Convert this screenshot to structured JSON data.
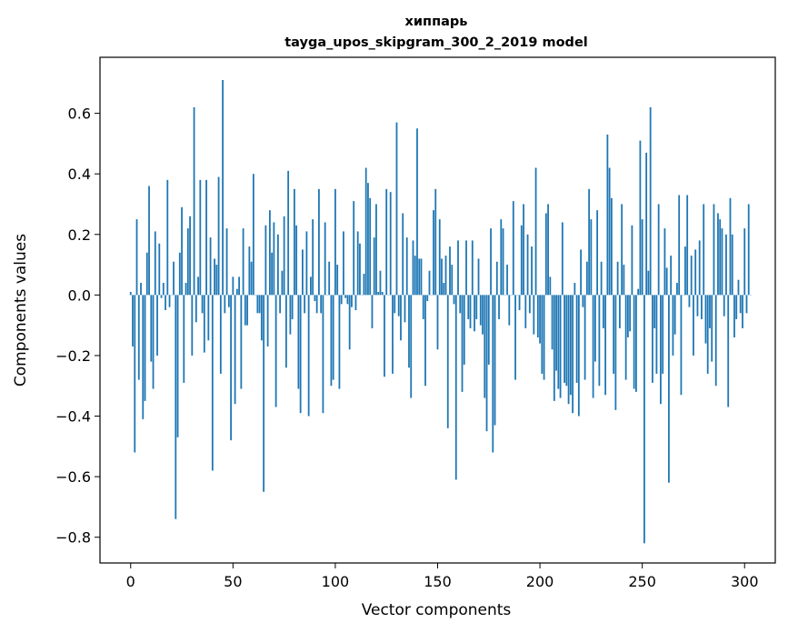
{
  "chart_data": {
    "type": "bar",
    "title": "хиппарь",
    "subtitle": "tayga_upos_skipgram_300_2_2019 model",
    "xlabel": "Vector components",
    "ylabel": "Components values",
    "xlim": [
      -15,
      315
    ],
    "ylim": [
      -0.885,
      0.785
    ],
    "grid": false,
    "bar_color": "#1f77b4",
    "xticks": [
      0,
      50,
      100,
      150,
      200,
      250,
      300
    ],
    "xtick_labels": [
      "0",
      "50",
      "100",
      "150",
      "200",
      "250",
      "300"
    ],
    "yticks": [
      -0.8,
      -0.6,
      -0.4,
      -0.2,
      0.0,
      0.2,
      0.4,
      0.6
    ],
    "ytick_labels": [
      "−0.8",
      "−0.6",
      "−0.4",
      "−0.2",
      "0.0",
      "0.2",
      "0.4",
      "0.6"
    ],
    "series": [
      {
        "values": [
          0.01,
          -0.17,
          -0.52,
          0.25,
          -0.28,
          0.04,
          -0.41,
          -0.35,
          0.14,
          0.36,
          -0.22,
          -0.31,
          0.21,
          -0.2,
          0.17,
          -0.01,
          0.04,
          -0.05,
          0.38,
          -0.04,
          0.0,
          0.11,
          -0.74,
          -0.47,
          0.14,
          0.29,
          -0.29,
          0.04,
          0.22,
          0.26,
          -0.2,
          0.62,
          -0.09,
          0.06,
          0.38,
          -0.06,
          -0.19,
          0.38,
          -0.15,
          0.19,
          -0.58,
          0.12,
          0.1,
          0.39,
          -0.26,
          0.71,
          -0.06,
          0.22,
          -0.04,
          -0.48,
          0.06,
          -0.36,
          0.02,
          0.06,
          -0.31,
          0.22,
          -0.1,
          -0.1,
          0.16,
          0.11,
          0.4,
          0.0,
          -0.06,
          -0.06,
          -0.15,
          -0.65,
          0.23,
          -0.17,
          0.28,
          0.14,
          0.24,
          -0.37,
          0.2,
          -0.06,
          0.08,
          0.26,
          -0.24,
          0.41,
          -0.13,
          -0.08,
          0.35,
          0.23,
          -0.31,
          -0.39,
          0.15,
          -0.06,
          0.21,
          -0.4,
          0.06,
          0.25,
          -0.02,
          -0.06,
          0.35,
          -0.06,
          -0.39,
          0.24,
          0.0,
          0.11,
          -0.3,
          -0.28,
          0.35,
          0.1,
          -0.31,
          -0.03,
          0.21,
          -0.01,
          -0.03,
          -0.18,
          -0.04,
          0.31,
          -0.05,
          0.21,
          0.17,
          0.0,
          0.07,
          0.42,
          0.37,
          0.32,
          -0.11,
          0.19,
          0.3,
          0.01,
          0.08,
          0.01,
          -0.27,
          0.35,
          0.0,
          0.34,
          -0.26,
          -0.06,
          0.57,
          -0.07,
          -0.15,
          0.27,
          -0.09,
          0.19,
          -0.24,
          -0.34,
          0.18,
          0.13,
          0.55,
          0.12,
          0.12,
          -0.08,
          -0.3,
          -0.02,
          0.08,
          0.0,
          0.28,
          0.35,
          -0.18,
          0.25,
          0.12,
          0.04,
          0.13,
          -0.44,
          0.16,
          0.1,
          -0.03,
          -0.61,
          0.18,
          -0.06,
          -0.32,
          -0.23,
          0.18,
          -0.08,
          -0.11,
          0.18,
          -0.12,
          -0.08,
          0.12,
          -0.1,
          -0.13,
          -0.34,
          -0.45,
          -0.23,
          0.22,
          -0.52,
          -0.43,
          0.11,
          -0.08,
          0.25,
          0.22,
          0.0,
          0.1,
          -0.1,
          0.0,
          0.31,
          -0.28,
          0.0,
          -0.05,
          0.23,
          0.3,
          -0.11,
          0.2,
          -0.06,
          0.16,
          -0.13,
          0.42,
          -0.14,
          -0.16,
          -0.26,
          -0.28,
          0.27,
          0.3,
          0.06,
          -0.18,
          -0.35,
          -0.25,
          -0.31,
          -0.34,
          0.24,
          -0.29,
          -0.3,
          -0.36,
          -0.33,
          -0.39,
          0.04,
          -0.29,
          -0.4,
          0.15,
          -0.04,
          -0.28,
          0.11,
          0.35,
          0.25,
          -0.34,
          -0.22,
          0.28,
          -0.3,
          0.11,
          -0.11,
          -0.33,
          0.53,
          0.42,
          0.32,
          -0.26,
          -0.38,
          0.11,
          -0.11,
          0.3,
          0.1,
          -0.28,
          -0.14,
          -0.12,
          0.23,
          -0.31,
          -0.32,
          0.02,
          0.51,
          0.25,
          -0.82,
          0.47,
          0.08,
          0.62,
          -0.29,
          -0.11,
          -0.26,
          0.3,
          -0.36,
          -0.26,
          0.22,
          0.09,
          -0.62,
          0.13,
          -0.2,
          -0.13,
          0.04,
          0.33,
          -0.33,
          0.0,
          0.16,
          0.33,
          -0.04,
          0.13,
          -0.2,
          0.15,
          -0.07,
          0.18,
          -0.08,
          0.3,
          -0.16,
          -0.26,
          -0.11,
          -0.22,
          0.3,
          -0.3,
          0.27,
          0.25,
          0.22,
          -0.07,
          0.2,
          -0.37,
          0.32,
          0.2,
          -0.14,
          -0.08,
          0.05,
          -0.06,
          -0.11,
          0.22,
          -0.06,
          0.3,
          0.0
        ]
      }
    ]
  }
}
